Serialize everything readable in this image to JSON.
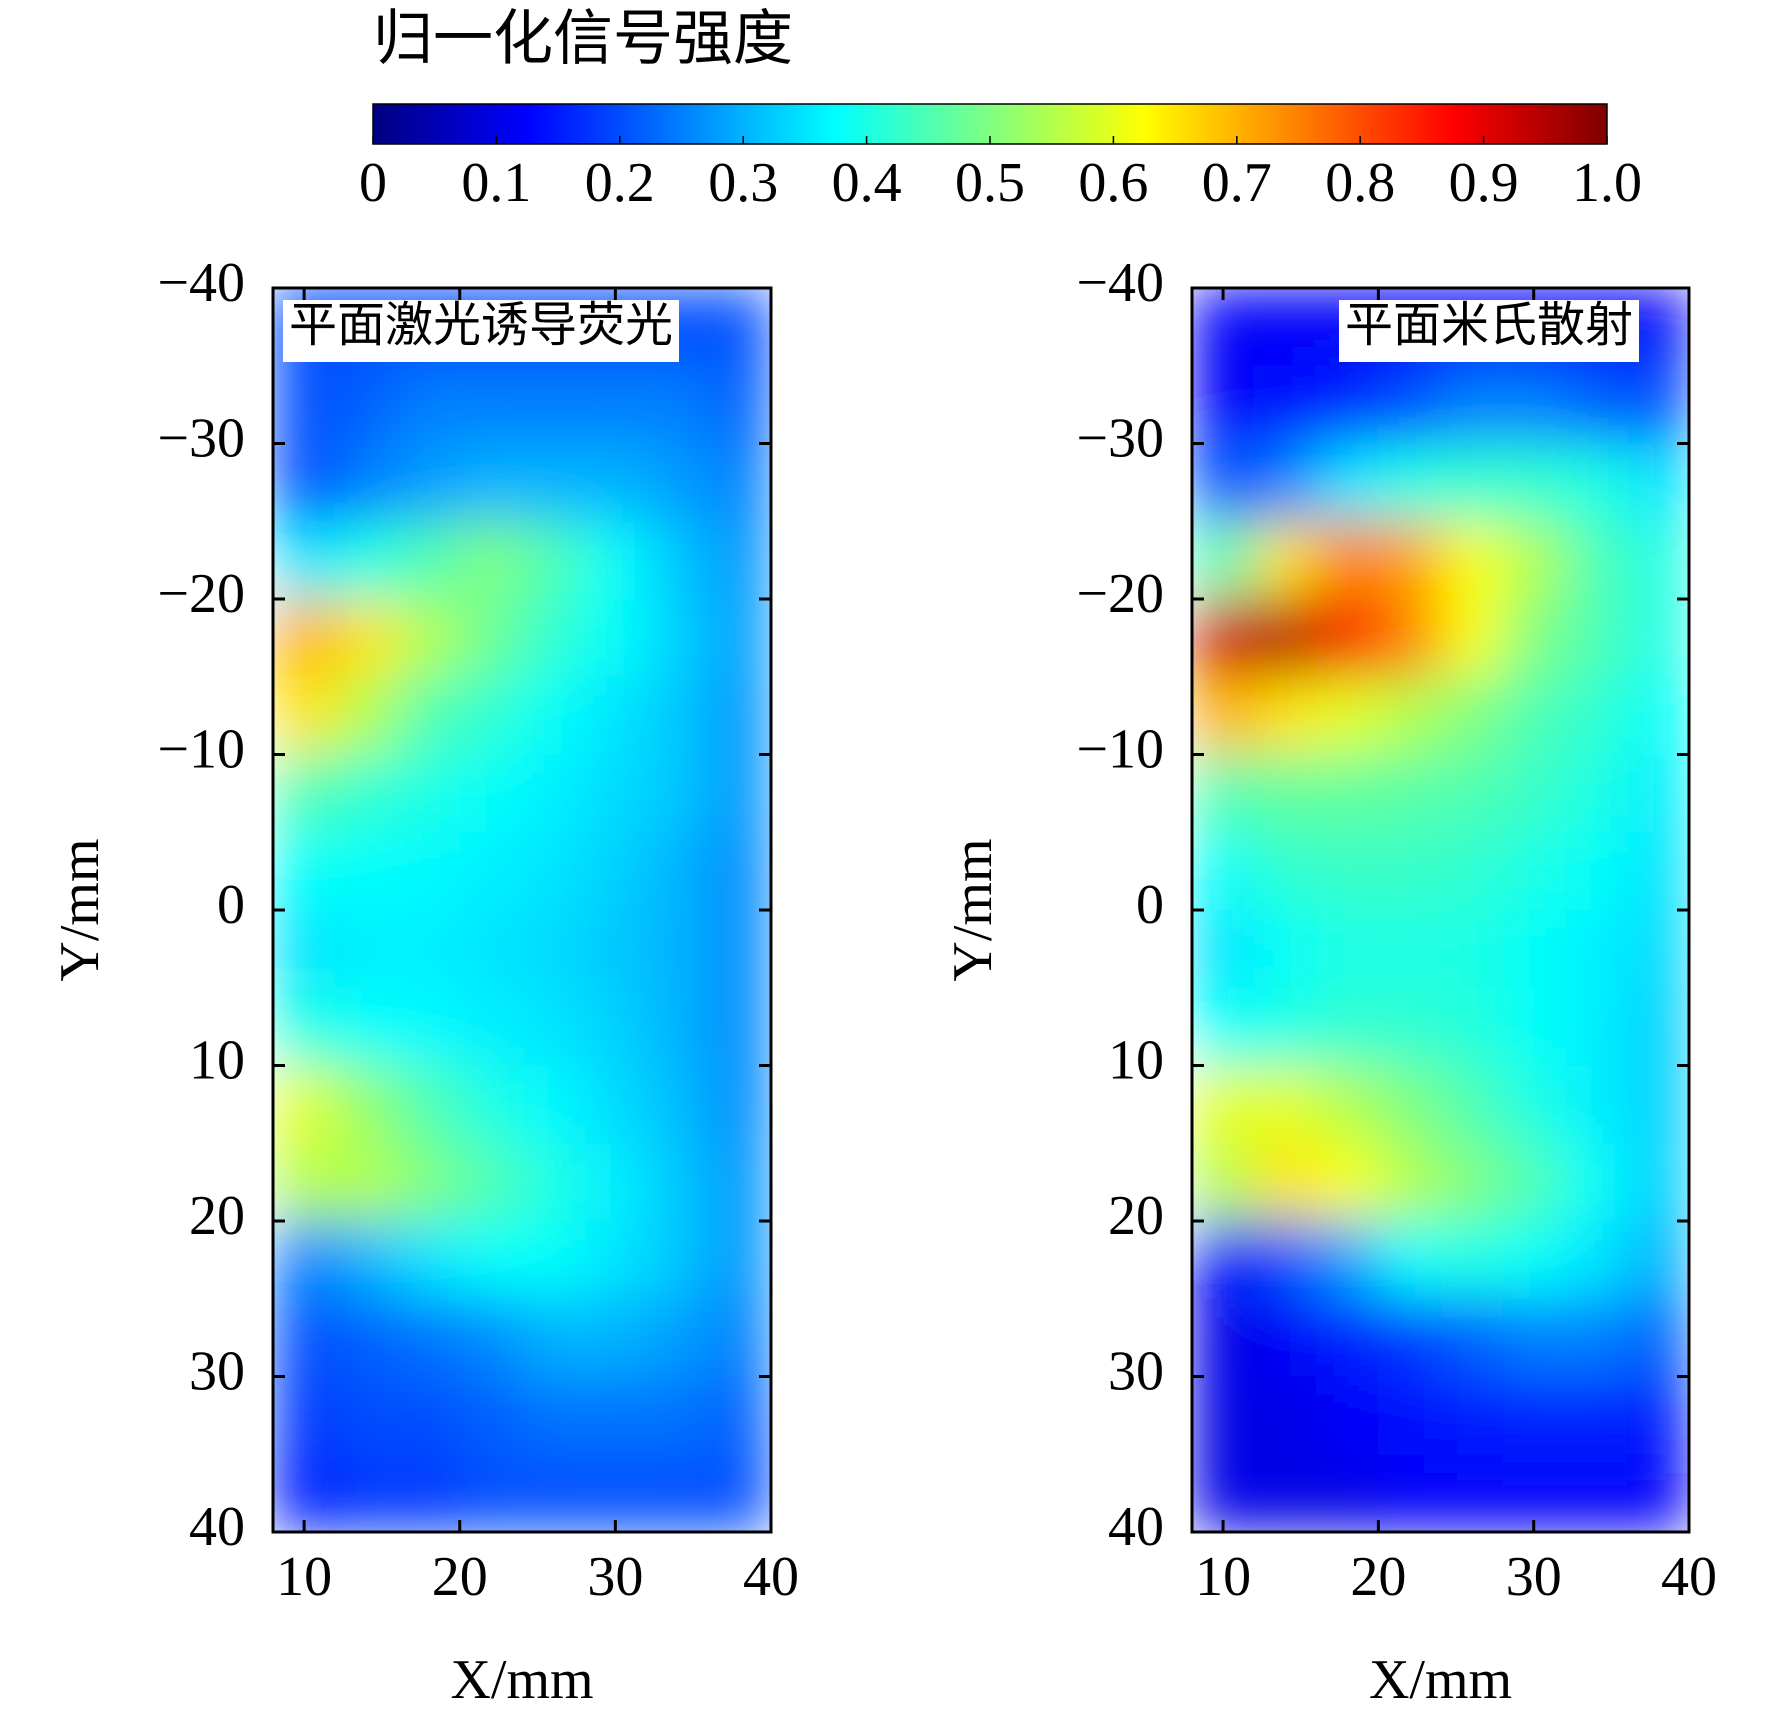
{
  "colorbar": {
    "title": "归一化信号强度",
    "lim": [
      0,
      1
    ],
    "colormap": "jet",
    "ticks": [
      0,
      0.1,
      0.2,
      0.3,
      0.4,
      0.5,
      0.6,
      0.7,
      0.8,
      0.9,
      {
        "value": 1,
        "label": "1.0"
      }
    ]
  },
  "chart_data": [
    {
      "type": "heatmap",
      "annotation": "平面激光诱导荧光",
      "annotation_loc": "upper left",
      "xlabel": "X/mm",
      "ylabel": "Y/mm",
      "xlim": [
        8,
        40
      ],
      "ylim": [
        -40,
        40
      ],
      "y_inverted": true,
      "xticks": [
        10,
        20,
        30,
        40
      ],
      "yticks": [
        {
          "value": -40,
          "label": "−40"
        },
        {
          "value": -30,
          "label": "−30"
        },
        {
          "value": -20,
          "label": "−20"
        },
        {
          "value": -10,
          "label": "−10"
        },
        0,
        10,
        20,
        30,
        40
      ],
      "x_edges": [
        8,
        12,
        16,
        20,
        24,
        28,
        32,
        36,
        40
      ],
      "y_edges": [
        -40,
        -35,
        -30,
        -25,
        -20,
        -15,
        -10,
        -5,
        0,
        5,
        10,
        15,
        20,
        25,
        30,
        35,
        40
      ],
      "z": [
        [
          0.2,
          0.2,
          0.2,
          0.2,
          0.2,
          0.2,
          0.2,
          0.2
        ],
        [
          0.2,
          0.22,
          0.25,
          0.25,
          0.25,
          0.25,
          0.25,
          0.22
        ],
        [
          0.2,
          0.25,
          0.28,
          0.3,
          0.3,
          0.3,
          0.28,
          0.25
        ],
        [
          0.35,
          0.4,
          0.45,
          0.5,
          0.45,
          0.38,
          0.32,
          0.27
        ],
        [
          0.7,
          0.65,
          0.55,
          0.48,
          0.42,
          0.38,
          0.33,
          0.28
        ],
        [
          0.65,
          0.55,
          0.45,
          0.42,
          0.38,
          0.35,
          0.32,
          0.27
        ],
        [
          0.45,
          0.42,
          0.4,
          0.38,
          0.36,
          0.34,
          0.32,
          0.27
        ],
        [
          0.38,
          0.38,
          0.37,
          0.36,
          0.35,
          0.33,
          0.3,
          0.26
        ],
        [
          0.35,
          0.36,
          0.36,
          0.35,
          0.34,
          0.32,
          0.3,
          0.26
        ],
        [
          0.4,
          0.38,
          0.37,
          0.36,
          0.35,
          0.33,
          0.3,
          0.26
        ],
        [
          0.6,
          0.52,
          0.45,
          0.4,
          0.37,
          0.34,
          0.31,
          0.26
        ],
        [
          0.55,
          0.55,
          0.5,
          0.45,
          0.4,
          0.36,
          0.32,
          0.27
        ],
        [
          0.25,
          0.3,
          0.35,
          0.38,
          0.38,
          0.35,
          0.32,
          0.27
        ],
        [
          0.2,
          0.22,
          0.24,
          0.26,
          0.3,
          0.3,
          0.28,
          0.25
        ],
        [
          0.18,
          0.2,
          0.2,
          0.22,
          0.24,
          0.24,
          0.24,
          0.22
        ],
        [
          0.15,
          0.18,
          0.18,
          0.2,
          0.2,
          0.2,
          0.2,
          0.2
        ]
      ]
    },
    {
      "type": "heatmap",
      "annotation": "平面米氏散射",
      "annotation_loc": "upper right",
      "xlabel": "X/mm",
      "ylabel": "Y/mm",
      "xlim": [
        8,
        40
      ],
      "ylim": [
        -40,
        40
      ],
      "y_inverted": true,
      "xticks": [
        10,
        20,
        30,
        40
      ],
      "yticks": [
        {
          "value": -40,
          "label": "−40"
        },
        {
          "value": -30,
          "label": "−30"
        },
        {
          "value": -20,
          "label": "−20"
        },
        {
          "value": -10,
          "label": "−10"
        },
        0,
        10,
        20,
        30,
        40
      ],
      "x_edges": [
        8,
        12,
        16,
        20,
        24,
        28,
        32,
        36,
        40
      ],
      "y_edges": [
        -40,
        -35,
        -30,
        -25,
        -20,
        -15,
        -10,
        -5,
        0,
        5,
        10,
        15,
        20,
        25,
        30,
        35,
        40
      ],
      "z": [
        [
          0.12,
          0.12,
          0.12,
          0.12,
          0.12,
          0.12,
          0.12,
          0.12
        ],
        [
          0.12,
          0.14,
          0.16,
          0.2,
          0.25,
          0.25,
          0.22,
          0.2
        ],
        [
          0.2,
          0.25,
          0.35,
          0.4,
          0.42,
          0.42,
          0.4,
          0.35
        ],
        [
          0.45,
          0.65,
          0.75,
          0.72,
          0.62,
          0.55,
          0.45,
          0.4
        ],
        [
          0.92,
          0.95,
          0.88,
          0.75,
          0.62,
          0.5,
          0.45,
          0.4
        ],
        [
          0.7,
          0.65,
          0.6,
          0.55,
          0.5,
          0.45,
          0.42,
          0.38
        ],
        [
          0.45,
          0.47,
          0.47,
          0.46,
          0.45,
          0.43,
          0.4,
          0.36
        ],
        [
          0.38,
          0.42,
          0.43,
          0.43,
          0.42,
          0.4,
          0.38,
          0.35
        ],
        [
          0.35,
          0.38,
          0.4,
          0.4,
          0.4,
          0.38,
          0.36,
          0.34
        ],
        [
          0.38,
          0.4,
          0.42,
          0.42,
          0.41,
          0.38,
          0.36,
          0.33
        ],
        [
          0.6,
          0.6,
          0.55,
          0.5,
          0.45,
          0.4,
          0.36,
          0.33
        ],
        [
          0.55,
          0.65,
          0.62,
          0.55,
          0.5,
          0.45,
          0.38,
          0.33
        ],
        [
          0.12,
          0.2,
          0.28,
          0.38,
          0.4,
          0.38,
          0.35,
          0.3
        ],
        [
          0.1,
          0.12,
          0.15,
          0.18,
          0.22,
          0.25,
          0.25,
          0.22
        ],
        [
          0.1,
          0.1,
          0.12,
          0.14,
          0.15,
          0.16,
          0.16,
          0.15
        ],
        [
          0.1,
          0.1,
          0.1,
          0.12,
          0.12,
          0.12,
          0.12,
          0.12
        ]
      ]
    }
  ]
}
